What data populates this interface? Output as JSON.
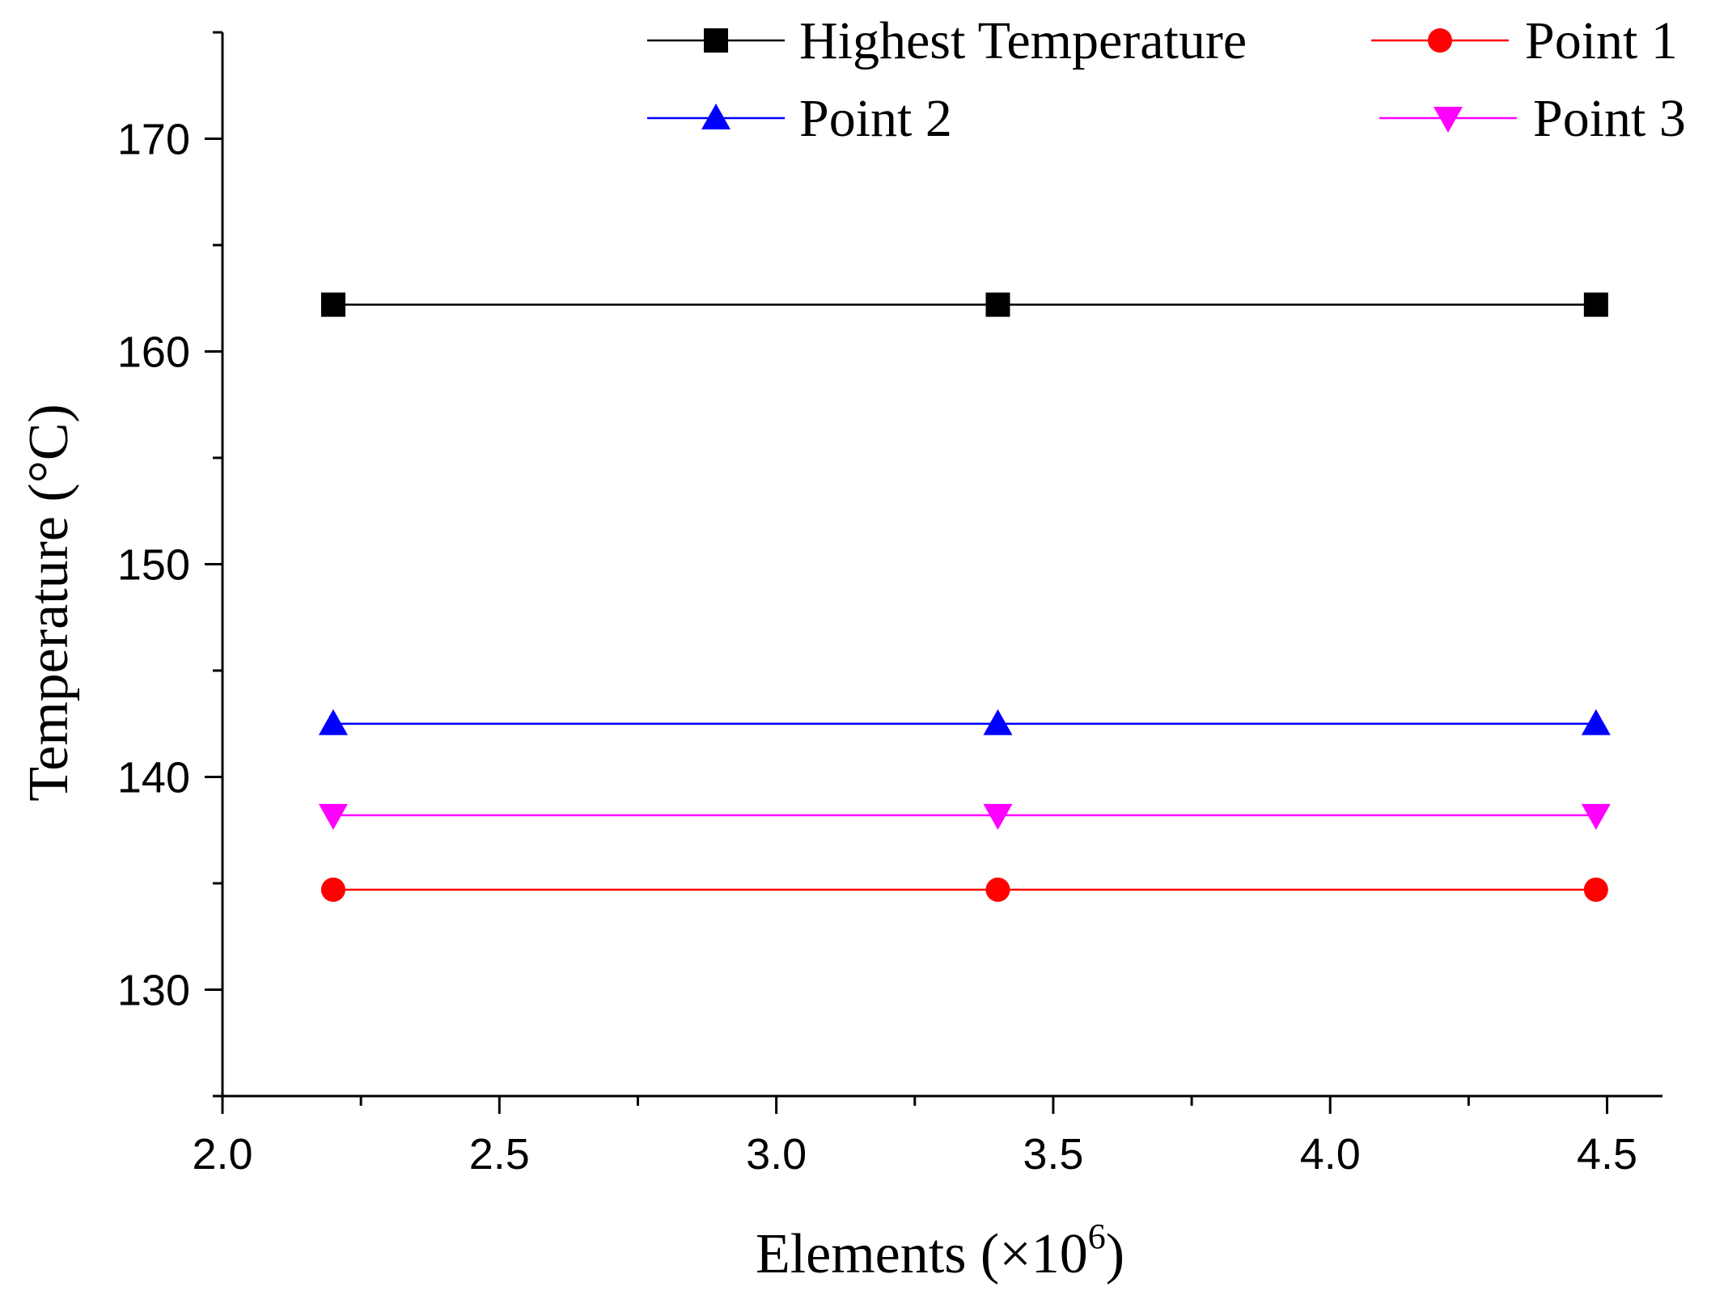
{
  "chart_data": {
    "type": "line",
    "title": "",
    "xlabel": "Elements (×10",
    "xlabel_superscript": "6",
    "xlabel_suffix": ")",
    "ylabel": "Temperature (°C)",
    "xlim": [
      2.0,
      4.6
    ],
    "ylim": [
      125,
      175
    ],
    "xticks": [
      2.0,
      2.5,
      3.0,
      3.5,
      4.0,
      4.5
    ],
    "xtick_labels": [
      "2.0",
      "2.5",
      "3.0",
      "3.5",
      "4.0",
      "4.5"
    ],
    "yticks": [
      130,
      140,
      150,
      160,
      170
    ],
    "ytick_labels": [
      "130",
      "140",
      "150",
      "160",
      "170"
    ],
    "x": [
      2.2,
      3.4,
      4.48
    ],
    "grid": false,
    "legend_position": "top-right",
    "series": [
      {
        "name": "Highest Temperature",
        "values": [
          162.2,
          162.2,
          162.2
        ],
        "color": "#000000",
        "marker": "square"
      },
      {
        "name": "Point 1",
        "values": [
          134.7,
          134.7,
          134.7
        ],
        "color": "#ff0000",
        "marker": "circle"
      },
      {
        "name": "Point 2",
        "values": [
          142.5,
          142.5,
          142.5
        ],
        "color": "#0000ff",
        "marker": "triangle-up"
      },
      {
        "name": "Point 3",
        "values": [
          138.2,
          138.2,
          138.2
        ],
        "color": "#ff00ff",
        "marker": "triangle-down"
      }
    ]
  }
}
